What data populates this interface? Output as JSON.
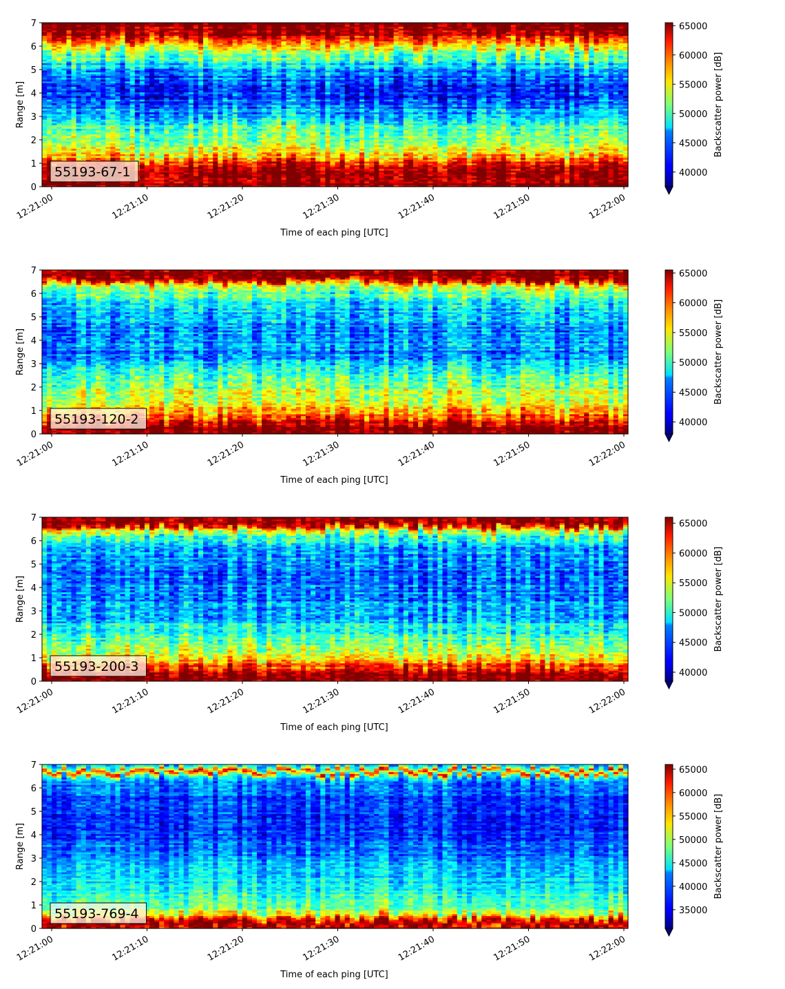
{
  "chart_data": [
    {
      "type": "heatmap",
      "label": "55193-67-1",
      "xlabel": "Time of each ping [UTC]",
      "ylabel": "Range [m]",
      "x_ticks": [
        "12:21:00",
        "12:21:10",
        "12:21:20",
        "12:21:30",
        "12:21:40",
        "12:21:50",
        "12:22:00"
      ],
      "xlim": [
        "12:21:00",
        "12:22:00"
      ],
      "y_ticks": [
        0,
        1,
        2,
        3,
        4,
        5,
        6,
        7
      ],
      "ylim": [
        0,
        7
      ],
      "colorbar": {
        "label": "Backscatter power [dB]",
        "ticks": [
          40000,
          45000,
          50000,
          55000,
          60000,
          65000
        ],
        "range": [
          37500,
          65500
        ],
        "colormap": "jet",
        "extend": "min"
      },
      "profile": {
        "range_m": [
          0.0,
          0.3,
          0.7,
          1.05,
          1.4,
          1.8,
          2.2,
          2.6,
          3.0,
          3.5,
          4.0,
          4.5,
          5.0,
          5.5,
          5.9,
          6.3,
          6.5,
          6.7,
          7.0
        ],
        "power": [
          65500,
          65500,
          65000,
          61000,
          55000,
          53000,
          52000,
          49000,
          46000,
          44000,
          42000,
          43000,
          45500,
          50000,
          55000,
          60000,
          64000,
          65500,
          65500
        ]
      }
    },
    {
      "type": "heatmap",
      "label": "55193-120-2",
      "xlabel": "Time of each ping [UTC]",
      "ylabel": "Range [m]",
      "x_ticks": [
        "12:21:00",
        "12:21:10",
        "12:21:20",
        "12:21:30",
        "12:21:40",
        "12:21:50",
        "12:22:00"
      ],
      "xlim": [
        "12:21:00",
        "12:22:00"
      ],
      "y_ticks": [
        0,
        1,
        2,
        3,
        4,
        5,
        6,
        7
      ],
      "ylim": [
        0,
        7
      ],
      "colorbar": {
        "label": "Backscatter power [dB]",
        "ticks": [
          40000,
          45000,
          50000,
          55000,
          60000,
          65000
        ],
        "range": [
          38000,
          65500
        ],
        "colormap": "jet",
        "extend": "min"
      },
      "profile": {
        "range_m": [
          0.0,
          0.3,
          0.5,
          0.8,
          1.2,
          1.6,
          2.0,
          2.5,
          3.0,
          3.5,
          4.0,
          4.5,
          5.0,
          5.5,
          6.0,
          6.4,
          6.6,
          7.0
        ],
        "power": [
          65500,
          65500,
          63000,
          58500,
          56000,
          54000,
          52000,
          49000,
          46500,
          45000,
          45000,
          45500,
          46500,
          48000,
          50500,
          56000,
          65500,
          65500
        ]
      }
    },
    {
      "type": "heatmap",
      "label": "55193-200-3",
      "xlabel": "Time of each ping [UTC]",
      "ylabel": "Range [m]",
      "x_ticks": [
        "12:21:00",
        "12:21:10",
        "12:21:20",
        "12:21:30",
        "12:21:40",
        "12:21:50",
        "12:22:00"
      ],
      "xlim": [
        "12:21:00",
        "12:22:00"
      ],
      "y_ticks": [
        0,
        1,
        2,
        3,
        4,
        5,
        6,
        7
      ],
      "ylim": [
        0,
        7
      ],
      "colorbar": {
        "label": "Backscatter power [dB]",
        "ticks": [
          40000,
          45000,
          50000,
          55000,
          60000,
          65000
        ],
        "range": [
          38500,
          66000
        ],
        "colormap": "jet",
        "extend": "min"
      },
      "profile": {
        "range_m": [
          0.0,
          0.25,
          0.45,
          0.7,
          1.0,
          1.4,
          1.8,
          2.2,
          2.7,
          3.2,
          3.8,
          4.4,
          5.0,
          5.6,
          6.1,
          6.5,
          6.7,
          7.0
        ],
        "power": [
          66000,
          66000,
          64000,
          60000,
          56500,
          54000,
          51500,
          49500,
          47500,
          46000,
          45000,
          45000,
          45500,
          47000,
          49500,
          56000,
          66000,
          66000
        ]
      }
    },
    {
      "type": "heatmap",
      "label": "55193-769-4",
      "xlabel": "Time of each ping [UTC]",
      "ylabel": "Range [m]",
      "x_ticks": [
        "12:21:00",
        "12:21:10",
        "12:21:20",
        "12:21:30",
        "12:21:40",
        "12:21:50",
        "12:22:00"
      ],
      "xlim": [
        "12:21:00",
        "12:22:00"
      ],
      "y_ticks": [
        0,
        1,
        2,
        3,
        4,
        5,
        6,
        7
      ],
      "ylim": [
        0,
        7
      ],
      "colorbar": {
        "label": "Backscatter power [dB]",
        "ticks": [
          35000,
          40000,
          45000,
          50000,
          55000,
          60000,
          65000
        ],
        "range": [
          31000,
          66000
        ],
        "colormap": "jet",
        "extend": "min"
      },
      "profile": {
        "range_m": [
          0.0,
          0.15,
          0.3,
          0.45,
          0.7,
          1.0,
          1.5,
          2.0,
          2.5,
          3.0,
          3.5,
          4.0,
          4.5,
          5.0,
          5.5,
          6.0,
          6.3,
          6.5,
          6.7,
          6.85,
          7.0
        ],
        "power": [
          60000,
          66000,
          66000,
          58000,
          50000,
          47500,
          45000,
          43500,
          42000,
          40000,
          38500,
          37500,
          37000,
          37000,
          37500,
          38500,
          40000,
          44000,
          62000,
          46000,
          41000
        ]
      }
    }
  ]
}
